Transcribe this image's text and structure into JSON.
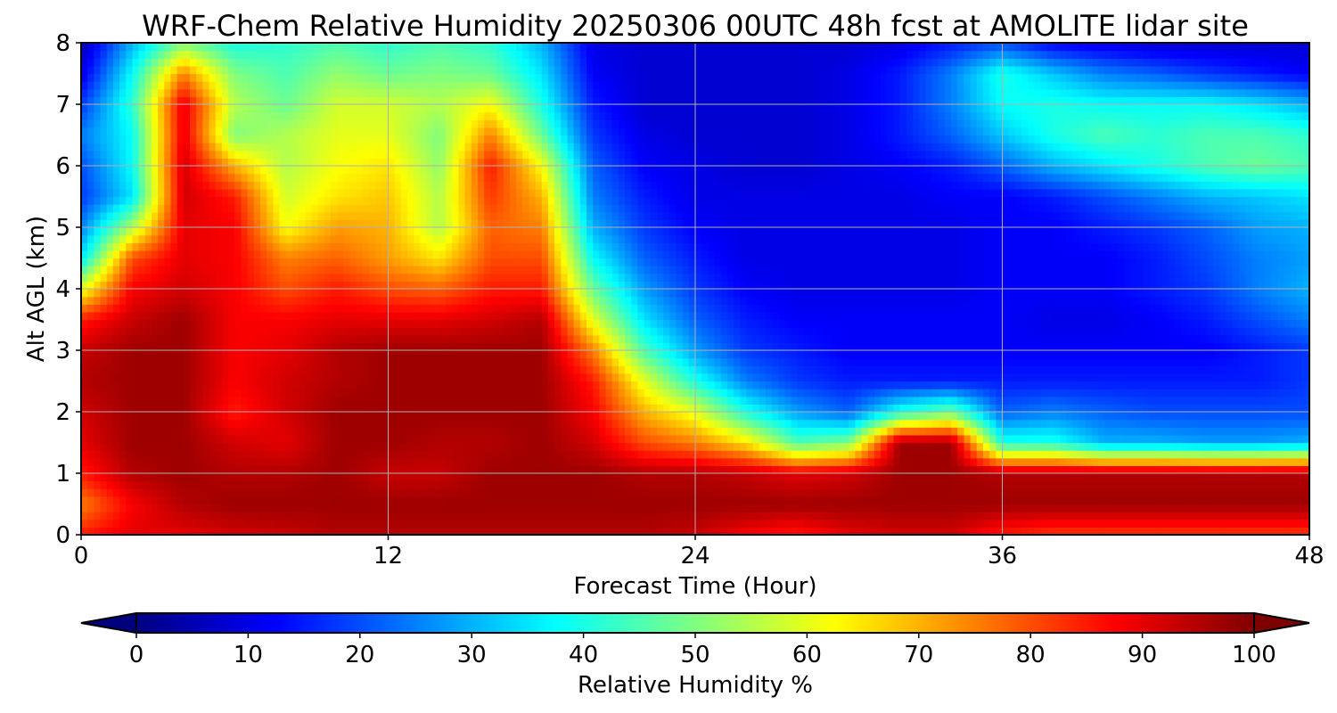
{
  "chart_data": {
    "type": "heatmap",
    "title": "WRF-Chem Relative Humidity 20250306 00UTC 48h fcst at AMOLITE lidar site",
    "xlabel": "Forecast Time (Hour)",
    "ylabel": "Alt AGL (km)",
    "xlim": [
      0,
      48
    ],
    "ylim": [
      0,
      8
    ],
    "x_ticks": [
      "0",
      "12",
      "24",
      "36",
      "48"
    ],
    "y_ticks": [
      "0",
      "1",
      "2",
      "3",
      "4",
      "5",
      "6",
      "7",
      "8"
    ],
    "grid": true,
    "colormap": "jet",
    "colorbar": {
      "label": "Relative Humidity %",
      "range": [
        0,
        100
      ],
      "ticks": [
        "0",
        "10",
        "20",
        "30",
        "40",
        "50",
        "60",
        "70",
        "80",
        "90",
        "100"
      ],
      "orientation": "horizontal",
      "extend": "both"
    },
    "x": [
      0,
      2,
      4,
      6,
      8,
      10,
      12,
      14,
      16,
      18,
      20,
      22,
      24,
      26,
      28,
      30,
      32,
      34,
      36,
      38,
      40,
      42,
      44,
      46,
      48
    ],
    "y": [
      0,
      0.5,
      1,
      1.5,
      2,
      2.5,
      3,
      3.5,
      4,
      4.5,
      5,
      5.5,
      6,
      6.5,
      7,
      7.5,
      8
    ],
    "z": [
      [
        85,
        90,
        90,
        92,
        93,
        95,
        95,
        95,
        95,
        95,
        95,
        95,
        93,
        88,
        85,
        90,
        92,
        92,
        85,
        82,
        82,
        82,
        82,
        82,
        82
      ],
      [
        75,
        88,
        95,
        97,
        97,
        97,
        97,
        97,
        97,
        97,
        97,
        97,
        97,
        97,
        97,
        97,
        97,
        97,
        97,
        97,
        97,
        97,
        97,
        97,
        97
      ],
      [
        85,
        95,
        97,
        95,
        95,
        97,
        93,
        93,
        97,
        97,
        97,
        95,
        95,
        93,
        90,
        92,
        97,
        97,
        95,
        95,
        95,
        95,
        95,
        95,
        95
      ],
      [
        90,
        97,
        97,
        92,
        90,
        97,
        97,
        95,
        95,
        97,
        92,
        80,
        75,
        65,
        45,
        50,
        97,
        97,
        40,
        40,
        30,
        30,
        28,
        28,
        30
      ],
      [
        92,
        97,
        97,
        85,
        92,
        97,
        97,
        97,
        97,
        97,
        88,
        70,
        60,
        40,
        28,
        22,
        40,
        48,
        22,
        25,
        22,
        20,
        20,
        20,
        20
      ],
      [
        95,
        97,
        97,
        88,
        92,
        95,
        97,
        97,
        97,
        97,
        85,
        60,
        40,
        25,
        18,
        15,
        15,
        15,
        15,
        15,
        15,
        15,
        15,
        15,
        18
      ],
      [
        93,
        97,
        97,
        88,
        90,
        95,
        97,
        97,
        97,
        97,
        75,
        45,
        28,
        18,
        15,
        12,
        12,
        12,
        12,
        12,
        12,
        12,
        12,
        15,
        18
      ],
      [
        85,
        93,
        97,
        88,
        88,
        90,
        90,
        90,
        92,
        95,
        60,
        35,
        22,
        15,
        12,
        12,
        12,
        12,
        12,
        10,
        10,
        12,
        15,
        20,
        25
      ],
      [
        60,
        88,
        92,
        88,
        80,
        85,
        80,
        78,
        85,
        85,
        48,
        28,
        18,
        12,
        10,
        10,
        10,
        10,
        12,
        12,
        12,
        15,
        18,
        25,
        30
      ],
      [
        35,
        80,
        90,
        88,
        75,
        78,
        72,
        65,
        80,
        80,
        38,
        22,
        15,
        10,
        10,
        10,
        10,
        10,
        12,
        12,
        12,
        15,
        20,
        25,
        28
      ],
      [
        25,
        55,
        90,
        88,
        62,
        72,
        70,
        55,
        78,
        75,
        30,
        18,
        12,
        10,
        10,
        10,
        10,
        10,
        12,
        12,
        15,
        18,
        22,
        28,
        30
      ],
      [
        18,
        35,
        92,
        85,
        58,
        65,
        68,
        55,
        82,
        70,
        25,
        15,
        10,
        10,
        10,
        10,
        10,
        12,
        12,
        15,
        20,
        25,
        30,
        32,
        35
      ],
      [
        20,
        38,
        92,
        70,
        55,
        62,
        65,
        52,
        85,
        62,
        22,
        12,
        10,
        8,
        8,
        10,
        12,
        15,
        22,
        30,
        35,
        40,
        45,
        48,
        45
      ],
      [
        25,
        38,
        90,
        50,
        55,
        60,
        60,
        50,
        75,
        48,
        18,
        10,
        8,
        8,
        8,
        10,
        15,
        22,
        32,
        40,
        45,
        42,
        45,
        45,
        42
      ],
      [
        18,
        42,
        90,
        55,
        48,
        58,
        58,
        55,
        62,
        40,
        15,
        8,
        8,
        8,
        8,
        10,
        15,
        25,
        38,
        40,
        38,
        38,
        38,
        35,
        30
      ],
      [
        10,
        38,
        75,
        50,
        45,
        52,
        48,
        50,
        48,
        35,
        12,
        8,
        8,
        8,
        8,
        10,
        15,
        25,
        40,
        32,
        25,
        22,
        18,
        15,
        12
      ],
      [
        5,
        30,
        50,
        40,
        42,
        45,
        42,
        45,
        42,
        30,
        10,
        8,
        8,
        8,
        8,
        8,
        10,
        15,
        20,
        12,
        10,
        8,
        8,
        8,
        8
      ]
    ]
  }
}
